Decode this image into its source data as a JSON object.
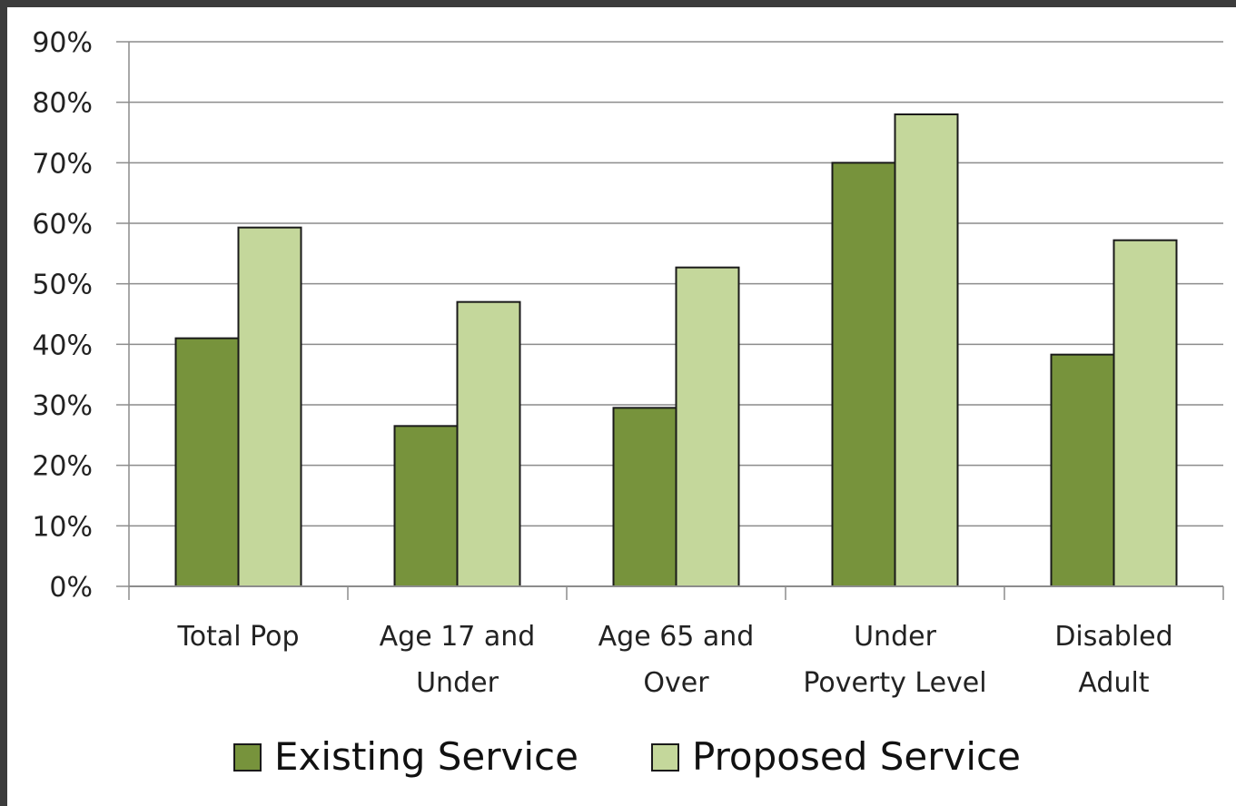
{
  "colors": {
    "existing": "#77933c",
    "proposed": "#c4d79b",
    "grid": "#8c8c8c",
    "outline": "#1a1a1a"
  },
  "chart_data": {
    "type": "bar",
    "categories": [
      [
        "Total Pop"
      ],
      [
        "Age 17 and",
        "Under"
      ],
      [
        "Age 65 and",
        "Over"
      ],
      [
        "Under",
        "Poverty Level"
      ],
      [
        "Disabled",
        "Adult"
      ]
    ],
    "series": [
      {
        "name": "Existing Service",
        "values": [
          41,
          26.5,
          29.5,
          70,
          38.3
        ]
      },
      {
        "name": "Proposed Service",
        "values": [
          59.3,
          47,
          52.7,
          78,
          57.2
        ]
      }
    ],
    "yticks": [
      "0%",
      "10%",
      "20%",
      "30%",
      "40%",
      "50%",
      "60%",
      "70%",
      "80%",
      "90%"
    ],
    "ylim": [
      0,
      90
    ],
    "grid": true,
    "legend_position": "bottom"
  }
}
